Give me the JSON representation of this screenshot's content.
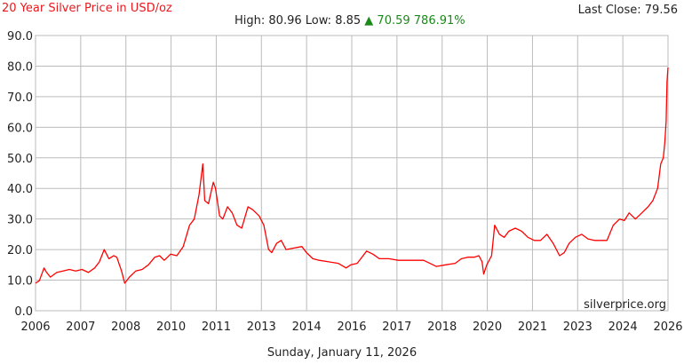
{
  "header": {
    "title": "20 Year Silver Price in USD/oz",
    "last_close_label": "Last Close:",
    "last_close": "79.56",
    "high_label": "High:",
    "high": "80.96",
    "low_label": "Low:",
    "low": "8.85",
    "change_icon": "triangle-up-icon",
    "change": "70.59",
    "change_pct": "786.91%",
    "change_color": "#1a8a1a"
  },
  "footer": {
    "date": "Sunday, January 11, 2026"
  },
  "chart_data": {
    "type": "line",
    "title": "20 Year Silver Price in USD/oz",
    "watermark": "silverprice.org",
    "xlim": [
      2006.03,
      2026.03
    ],
    "ylim": [
      0,
      90
    ],
    "grid": true,
    "line_color": "#ff0000",
    "y_ticks": [
      "0.0",
      "10.0",
      "20.0",
      "30.0",
      "40.0",
      "50.0",
      "60.0",
      "70.0",
      "80.0",
      "90.0"
    ],
    "x_ticks": [
      "2006",
      "2007",
      "2008",
      "2010",
      "2011",
      "2013",
      "2014",
      "2016",
      "2017",
      "2018",
      "2020",
      "2021",
      "2023",
      "2024",
      "2026"
    ],
    "series": [
      {
        "x": [
          2006.03,
          2006.15,
          2006.3,
          2006.38,
          2006.5,
          2006.7,
          2006.9,
          2007.1,
          2007.3,
          2007.5,
          2007.7,
          2007.9,
          2008.05,
          2008.2,
          2008.35,
          2008.5,
          2008.6,
          2008.75,
          2008.85,
          2009.0,
          2009.2,
          2009.4,
          2009.6,
          2009.8,
          2009.95,
          2010.1,
          2010.3,
          2010.5,
          2010.7,
          2010.9,
          2011.05,
          2011.2,
          2011.32,
          2011.38,
          2011.5,
          2011.65,
          2011.72,
          2011.85,
          2011.95,
          2012.1,
          2012.25,
          2012.4,
          2012.55,
          2012.75,
          2012.9,
          2013.1,
          2013.25,
          2013.4,
          2013.5,
          2013.65,
          2013.8,
          2013.95,
          2014.2,
          2014.45,
          2014.6,
          2014.8,
          2015.0,
          2015.3,
          2015.6,
          2015.85,
          2016.0,
          2016.2,
          2016.5,
          2016.7,
          2016.9,
          2017.2,
          2017.5,
          2017.8,
          2018.0,
          2018.3,
          2018.5,
          2018.7,
          2019.0,
          2019.3,
          2019.5,
          2019.7,
          2019.9,
          2020.05,
          2020.15,
          2020.2,
          2020.3,
          2020.45,
          2020.55,
          2020.7,
          2020.85,
          2021.0,
          2021.2,
          2021.4,
          2021.6,
          2021.8,
          2022.0,
          2022.2,
          2022.4,
          2022.6,
          2022.75,
          2022.9,
          2023.1,
          2023.3,
          2023.5,
          2023.7,
          2023.9,
          2024.1,
          2024.3,
          2024.5,
          2024.65,
          2024.8,
          2025.0,
          2025.2,
          2025.4,
          2025.55,
          2025.7,
          2025.8,
          2025.88,
          2025.93,
          2025.97,
          2026.0,
          2026.03
        ],
        "y": [
          9.0,
          9.8,
          14.0,
          12.5,
          11.0,
          12.5,
          13.0,
          13.5,
          13.0,
          13.5,
          12.5,
          14.0,
          16.0,
          20.0,
          17.0,
          18.0,
          17.5,
          13.0,
          9.0,
          11.0,
          13.0,
          13.5,
          15.0,
          17.5,
          18.0,
          16.5,
          18.5,
          18.0,
          21.0,
          28.0,
          30.0,
          38.0,
          48.0,
          36.0,
          35.0,
          42.0,
          40.0,
          31.0,
          30.0,
          34.0,
          32.0,
          28.0,
          27.0,
          34.0,
          33.0,
          31.0,
          28.0,
          20.0,
          19.0,
          22.0,
          23.0,
          20.0,
          20.5,
          21.0,
          19.0,
          17.0,
          16.5,
          16.0,
          15.5,
          14.0,
          15.0,
          15.5,
          19.5,
          18.5,
          17.0,
          17.0,
          16.5,
          16.5,
          16.5,
          16.5,
          15.5,
          14.5,
          15.0,
          15.5,
          17.0,
          17.5,
          17.5,
          18.0,
          16.0,
          12.0,
          15.0,
          18.0,
          28.0,
          25.0,
          24.0,
          26.0,
          27.0,
          26.0,
          24.0,
          23.0,
          23.0,
          25.0,
          22.0,
          18.0,
          19.0,
          22.0,
          24.0,
          25.0,
          23.5,
          23.0,
          23.0,
          23.0,
          28.0,
          30.0,
          29.5,
          32.0,
          30.0,
          32.0,
          34.0,
          36.0,
          40.0,
          48.0,
          50.0,
          55.0,
          62.0,
          75.0,
          79.56
        ]
      }
    ]
  }
}
